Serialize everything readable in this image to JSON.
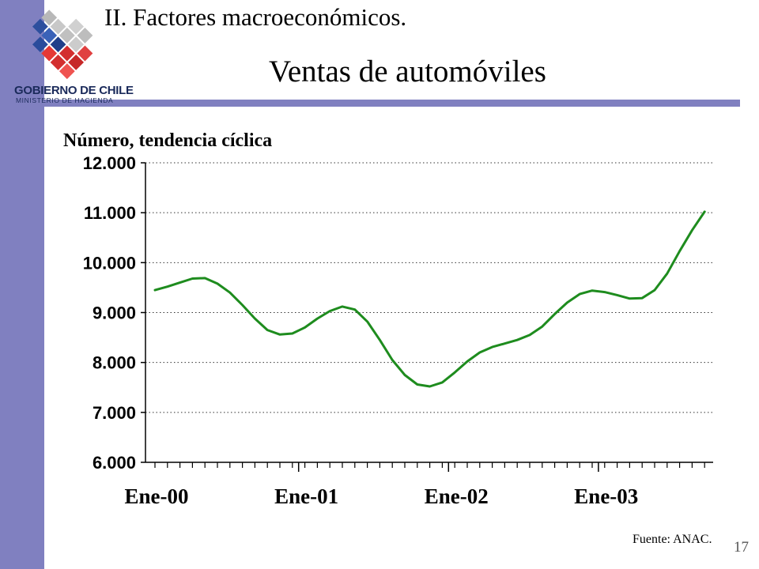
{
  "header": {
    "logo_text": "GOBIERNO DE CHILE",
    "logo_subtext": "MINISTERIO DE HACIENDA",
    "section_title": "II. Factores macroeconómicos.",
    "page_title": "Ventas de automóviles"
  },
  "footer": {
    "source": "Fuente: ANAC.",
    "page_number": "17"
  },
  "colors": {
    "accent_bar": "#8080c0",
    "series_line": "#1e8c1e"
  },
  "chart_data": {
    "type": "line",
    "title": "",
    "ylabel": "Número, tendencia cíclica",
    "xlabel": "",
    "ylim": [
      6000,
      12000
    ],
    "y_ticks": [
      6000,
      7000,
      8000,
      9000,
      10000,
      11000,
      12000
    ],
    "y_tick_labels": [
      "6.000",
      "7.000",
      "8.000",
      "9.000",
      "10.000",
      "11.000",
      "12.000"
    ],
    "x_tick_labels": [
      "Ene-00",
      "Ene-01",
      "Ene-02",
      "Ene-03"
    ],
    "x_label_months": [
      0,
      12,
      24,
      36
    ],
    "grid": "horizontal-dotted",
    "series": [
      {
        "x_months": [
          0,
          1,
          2,
          3,
          4,
          5,
          6,
          7,
          8,
          9,
          10,
          11,
          12,
          13,
          14,
          15,
          16,
          17,
          18,
          19,
          20,
          21,
          22,
          23,
          24,
          25,
          26,
          27,
          28,
          29,
          30,
          31,
          32,
          33,
          34,
          35,
          36,
          37,
          38,
          39,
          40,
          41,
          42,
          43,
          44
        ],
        "values": [
          9450,
          9520,
          9600,
          9680,
          9690,
          9580,
          9400,
          9150,
          8880,
          8650,
          8560,
          8580,
          8700,
          8880,
          9030,
          9120,
          9060,
          8820,
          8450,
          8050,
          7750,
          7560,
          7520,
          7600,
          7800,
          8020,
          8200,
          8310,
          8380,
          8450,
          8550,
          8720,
          8970,
          9200,
          9370,
          9440,
          9410,
          9350,
          9280,
          9290,
          9450,
          9780,
          10230,
          10650,
          11020
        ]
      }
    ]
  }
}
